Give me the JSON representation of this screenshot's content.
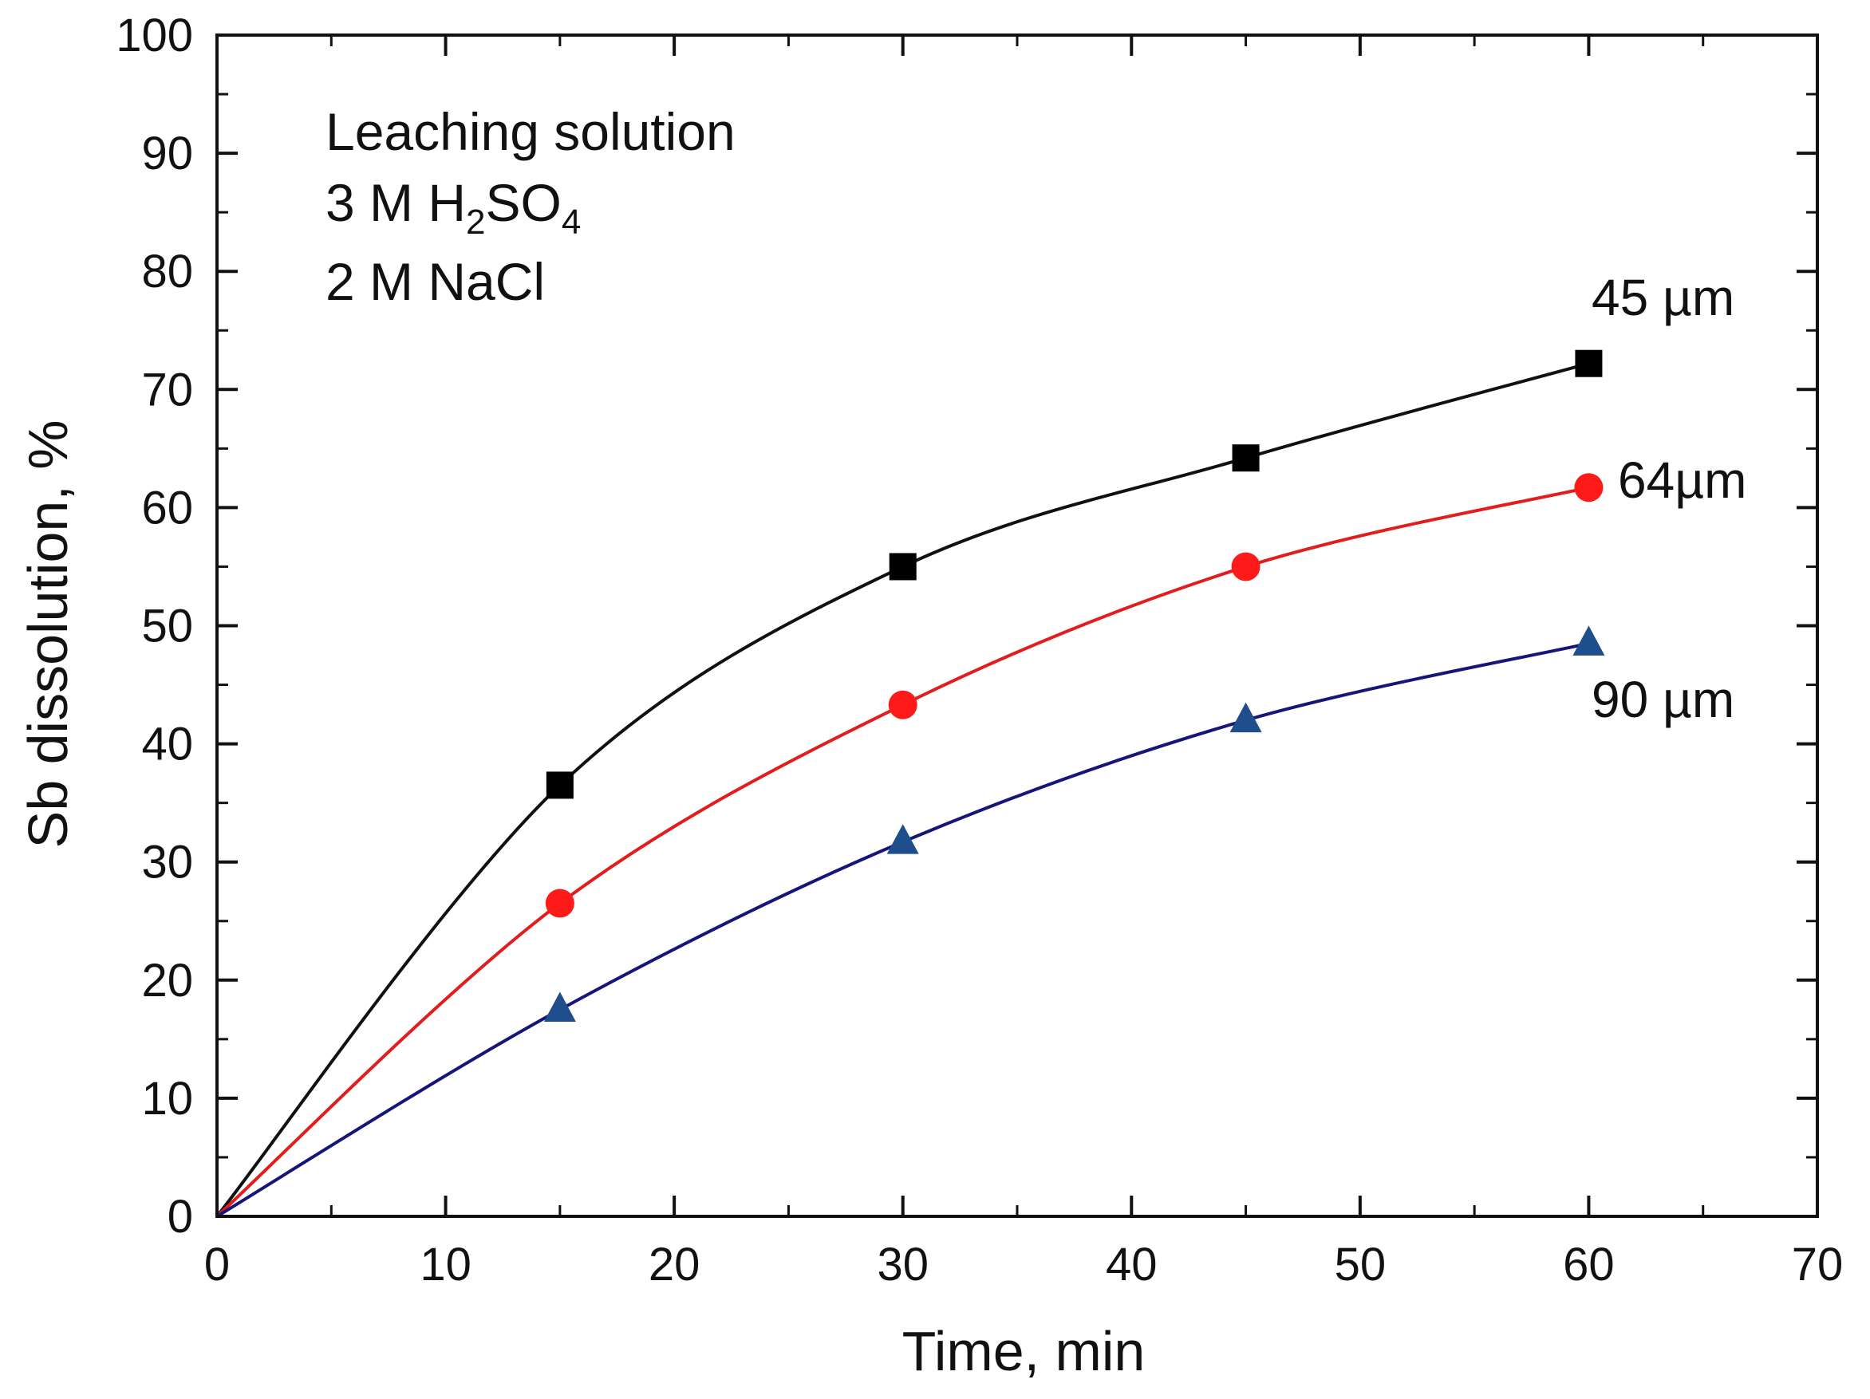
{
  "chart_data": {
    "type": "line",
    "title": "",
    "xlabel": "Time, min",
    "ylabel": "Sb dissolution, %",
    "xlim": [
      0,
      70
    ],
    "ylim": [
      0,
      100
    ],
    "x_ticks": [
      0,
      10,
      20,
      30,
      40,
      50,
      60,
      70
    ],
    "y_ticks": [
      0,
      10,
      20,
      30,
      40,
      50,
      60,
      70,
      80,
      90,
      100
    ],
    "grid": false,
    "annotation": {
      "line1": "Leaching solution",
      "line2_prefix": "3 M H",
      "line2_sub1": "2",
      "line2_mid": "SO",
      "line2_sub2": "4",
      "line3": "2 M NaCl"
    },
    "series": [
      {
        "name": "45 µm",
        "label_text": "45 µm",
        "marker": "square",
        "color": "#000000",
        "line_color": "#111111",
        "x": [
          0,
          15,
          30,
          45,
          60
        ],
        "y": [
          0,
          36.5,
          55,
          64.2,
          72.2
        ]
      },
      {
        "name": "64µm",
        "label_text": "64µm",
        "marker": "circle",
        "color": "#ff1a1a",
        "line_color": "#e21d1d",
        "x": [
          0,
          15,
          30,
          45,
          60
        ],
        "y": [
          0,
          26.5,
          43.3,
          55,
          61.7
        ]
      },
      {
        "name": "90 µm",
        "label_text": "90 µm",
        "marker": "triangle",
        "color": "#1f4e8c",
        "line_color": "#16167a",
        "x": [
          0,
          15,
          30,
          45,
          60
        ],
        "y": [
          0,
          17.5,
          31.7,
          42,
          48.5
        ]
      }
    ]
  }
}
